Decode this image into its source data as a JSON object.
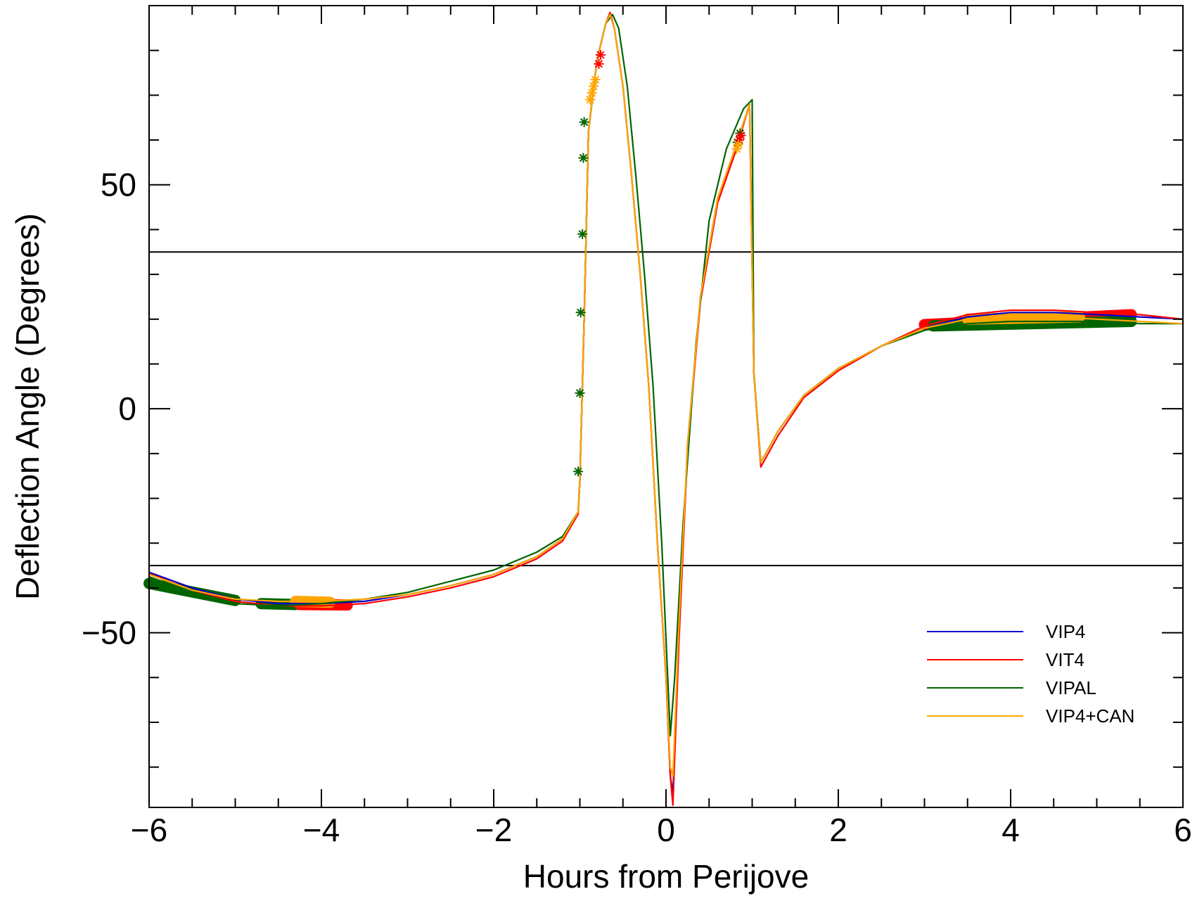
{
  "chart_data": {
    "type": "line",
    "title": "",
    "xlabel": "Hours from Perijove",
    "ylabel": "Deflection Angle (Degrees)",
    "xlim": [
      -6,
      6
    ],
    "ylim": [
      -89,
      90
    ],
    "x_ticks": [
      -6,
      -4,
      -2,
      0,
      2,
      4,
      6
    ],
    "x_tick_labels": [
      "−6",
      "−4",
      "−2",
      "0",
      "2",
      "4",
      "6"
    ],
    "y_ticks": [
      -50,
      0,
      50
    ],
    "y_tick_labels": [
      "−50",
      "0",
      "50"
    ],
    "x_minor_step": 0.5,
    "y_minor_step": 10,
    "reference_lines": [
      35,
      -35
    ],
    "legend_position": "bottom-right",
    "grid": false,
    "series": [
      {
        "name": "VIP4",
        "color": "#0000cc",
        "x": [
          -6,
          -5.5,
          -5,
          -4.5,
          -4,
          -3.5,
          -3,
          -2.5,
          -2,
          -1.5,
          -1.2,
          -1.02,
          -1.0,
          -0.95,
          -0.9,
          -0.8,
          -0.7,
          -0.65,
          -0.6,
          -0.5,
          -0.4,
          -0.3,
          -0.2,
          -0.1,
          0,
          0.05,
          0.08,
          0.15,
          0.25,
          0.4,
          0.6,
          0.8,
          0.97,
          1.02,
          1.1,
          1.3,
          1.6,
          2,
          2.5,
          3,
          3.5,
          4,
          4.5,
          5,
          5.5,
          6
        ],
        "y": [
          -36.5,
          -40,
          -42.5,
          -43.5,
          -43.5,
          -43,
          -41.5,
          -39.5,
          -37,
          -33,
          -29,
          -23,
          -16,
          20,
          62,
          78,
          86,
          88,
          85,
          72,
          52,
          30,
          5,
          -30,
          -60,
          -82,
          -86,
          -50,
          -8,
          25,
          47,
          58,
          68,
          8,
          -12,
          -5,
          3,
          9,
          14,
          18,
          20.5,
          21.5,
          21.5,
          21,
          20.5,
          20
        ]
      },
      {
        "name": "VIT4",
        "color": "#ff0000",
        "x": [
          -6,
          -5.5,
          -5,
          -4.5,
          -4,
          -3.5,
          -3,
          -2.5,
          -2,
          -1.5,
          -1.2,
          -1.02,
          -1.0,
          -0.95,
          -0.9,
          -0.8,
          -0.7,
          -0.65,
          -0.6,
          -0.5,
          -0.4,
          -0.3,
          -0.2,
          -0.1,
          0,
          0.05,
          0.08,
          0.15,
          0.25,
          0.4,
          0.6,
          0.8,
          0.97,
          1.02,
          1.1,
          1.3,
          1.6,
          2,
          2.5,
          3,
          3.5,
          4,
          4.5,
          5,
          5.5,
          6
        ],
        "y": [
          -36.8,
          -40.5,
          -43,
          -44,
          -44,
          -43.5,
          -42,
          -40,
          -37.5,
          -33.5,
          -29.5,
          -23.5,
          -16,
          20,
          62,
          78,
          86,
          88.5,
          85,
          72,
          52,
          30,
          5,
          -30,
          -60,
          -82,
          -88.5,
          -52,
          -9,
          24,
          46,
          57,
          68,
          8,
          -13,
          -6,
          2.5,
          8.5,
          14,
          18.5,
          21,
          22,
          22,
          21.5,
          21,
          20
        ]
      },
      {
        "name": "VIPAL",
        "color": "#006400",
        "x": [
          -6,
          -5.5,
          -5,
          -4.5,
          -4,
          -3.5,
          -3,
          -2.5,
          -2,
          -1.5,
          -1.2,
          -1.02,
          -1.0,
          -0.95,
          -0.9,
          -0.8,
          -0.7,
          -0.62,
          -0.55,
          -0.45,
          -0.35,
          -0.25,
          -0.15,
          -0.05,
          0.05,
          0.1,
          0.2,
          0.35,
          0.5,
          0.7,
          0.9,
          1.0,
          1.02,
          1.1,
          1.3,
          1.6,
          2,
          2.5,
          3,
          3.5,
          4,
          4.5,
          5,
          5.5,
          6
        ],
        "y": [
          -37.5,
          -41,
          -43.5,
          -44,
          -43.5,
          -42.5,
          -41,
          -38.5,
          -36,
          -32,
          -28.5,
          -23,
          -16,
          20,
          62,
          78,
          86,
          88,
          85,
          72,
          52,
          30,
          5,
          -30,
          -73,
          -60,
          -25,
          15,
          42,
          58,
          67,
          69,
          8,
          -12,
          -5,
          3,
          9,
          14,
          17.5,
          19,
          19.5,
          19.5,
          19.5,
          19,
          19
        ]
      },
      {
        "name": "VIP4+CAN",
        "color": "#ffa500",
        "x": [
          -6,
          -5.5,
          -5,
          -4.5,
          -4,
          -3.5,
          -3,
          -2.5,
          -2,
          -1.5,
          -1.2,
          -1.02,
          -1.0,
          -0.95,
          -0.9,
          -0.8,
          -0.7,
          -0.65,
          -0.6,
          -0.5,
          -0.4,
          -0.3,
          -0.2,
          -0.1,
          0,
          0.05,
          0.08,
          0.15,
          0.25,
          0.4,
          0.6,
          0.8,
          0.97,
          1.02,
          1.1,
          1.3,
          1.6,
          2,
          2.5,
          3,
          3.5,
          4,
          4.5,
          5,
          5.5,
          6
        ],
        "y": [
          -37,
          -40.5,
          -42.5,
          -43,
          -43,
          -42.5,
          -41.5,
          -39.5,
          -37,
          -33,
          -29,
          -23,
          -16,
          20,
          62,
          78,
          86,
          88,
          85,
          72,
          52,
          30,
          5,
          -30,
          -60,
          -80,
          -82,
          -48,
          -8,
          25,
          47,
          58,
          68,
          8,
          -12,
          -5,
          3,
          9,
          14,
          18,
          20,
          20.5,
          20.5,
          20,
          19.5,
          19
        ]
      }
    ],
    "markers": [
      {
        "name": "VIPAL",
        "color": "#006400",
        "x": [
          -1.02,
          -1.0,
          -0.99,
          -0.97,
          -0.96,
          -0.95,
          0.83,
          0.86
        ],
        "y": [
          -14,
          3.5,
          21.5,
          39,
          56,
          64,
          59.5,
          61.5
        ]
      },
      {
        "name": "VIT4",
        "color": "#ff0000",
        "x": [
          -0.78,
          -0.76,
          0.85,
          0.87
        ],
        "y": [
          77,
          79,
          60,
          61
        ]
      },
      {
        "name": "VIP4+CAN",
        "color": "#ffa500",
        "x": [
          -0.88,
          -0.86,
          -0.84,
          -0.82,
          0.82,
          0.84
        ],
        "y": [
          69,
          70.5,
          72,
          73.5,
          58,
          59
        ]
      }
    ],
    "bands": [
      {
        "name": "VIPAL",
        "color": "#006400",
        "x": [
          -6,
          -5.0
        ],
        "y": [
          -39,
          -42.8
        ]
      },
      {
        "name": "VIPAL",
        "color": "#006400",
        "x": [
          -4.7,
          -4.3
        ],
        "y": [
          -43.5,
          -43.7
        ]
      },
      {
        "name": "VIT4",
        "color": "#ff0000",
        "x": [
          -4.25,
          -3.7
        ],
        "y": [
          -43.7,
          -43.8
        ]
      },
      {
        "name": "VIP4+CAN",
        "color": "#ffa500",
        "x": [
          -4.3,
          -3.9
        ],
        "y": [
          -43,
          -43.2
        ]
      },
      {
        "name": "VIT4",
        "color": "#ff0000",
        "x": [
          3.0,
          5.4
        ],
        "y": [
          18.8,
          21
        ]
      },
      {
        "name": "VIPAL",
        "color": "#006400",
        "x": [
          3.1,
          5.4
        ],
        "y": [
          18.5,
          19.5
        ]
      },
      {
        "name": "VIP4+CAN",
        "color": "#ffa500",
        "x": [
          3.5,
          4.8
        ],
        "y": [
          20,
          20.5
        ]
      }
    ]
  }
}
